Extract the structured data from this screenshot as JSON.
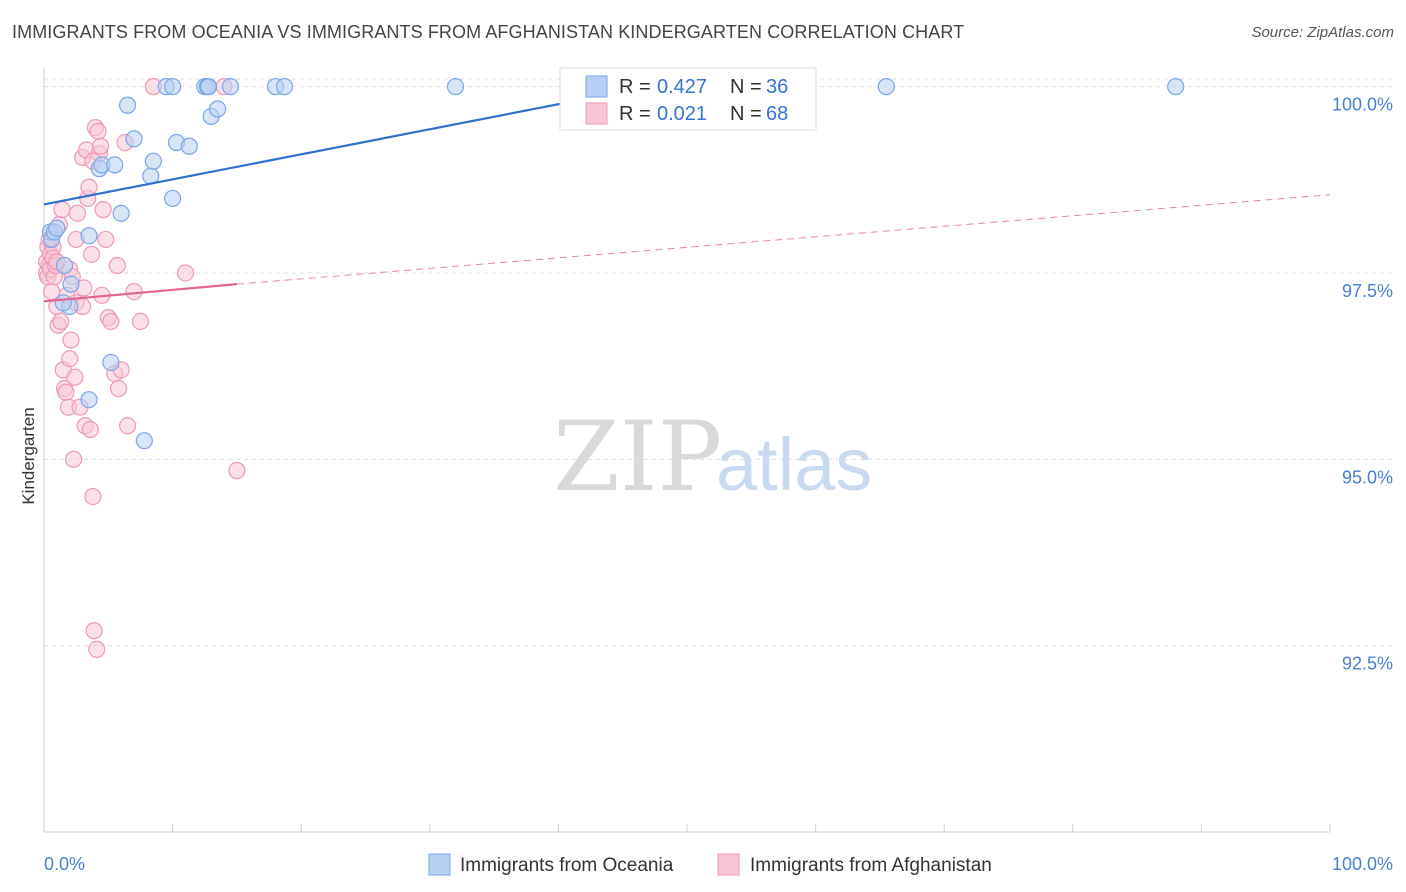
{
  "title": "IMMIGRANTS FROM OCEANIA VS IMMIGRANTS FROM AFGHANISTAN KINDERGARTEN CORRELATION CHART",
  "source": "Source: ZipAtlas.com",
  "watermark": {
    "zip": "ZIP",
    "atlas": "atlas"
  },
  "colors": {
    "oceania": "#7aa6e8",
    "oceania_fill": "#b8d0f3",
    "oceania_line": "#2f6fd0",
    "afghanistan": "#ee99b5",
    "afghanistan_fill": "#f7c6d6",
    "afghanistan_line": "#e0668f",
    "axis_text": "#4a7fd0",
    "grid": "#dddddd"
  },
  "legend_box": {
    "rows": [
      {
        "r_label": "R = ",
        "r_value": "0.427",
        "n_label": "N = ",
        "n_value": "36",
        "series": "oceania"
      },
      {
        "r_label": "R = ",
        "r_value": "0.021",
        "n_label": "N = ",
        "n_value": "68",
        "series": "afghanistan"
      }
    ]
  },
  "bottom_legend": [
    {
      "label": "Immigrants from Oceania",
      "series": "oceania"
    },
    {
      "label": "Immigrants from Afghanistan",
      "series": "afghanistan"
    }
  ],
  "chart_data": {
    "type": "scatter",
    "title": "IMMIGRANTS FROM OCEANIA VS IMMIGRANTS FROM AFGHANISTAN KINDERGARTEN CORRELATION CHART",
    "xlabel": "",
    "ylabel": "Kindergarten",
    "xlim": [
      0,
      100
    ],
    "ylim": [
      90.0,
      100.25
    ],
    "x_tick_labels": [
      "0.0%",
      "100.0%"
    ],
    "y_ticks": [
      {
        "value": 100.0,
        "label": "100.0%"
      },
      {
        "value": 97.5,
        "label": "97.5%"
      },
      {
        "value": 95.0,
        "label": "95.0%"
      },
      {
        "value": 92.5,
        "label": "92.5%"
      }
    ],
    "series": [
      {
        "name": "Immigrants from Oceania",
        "key": "oceania",
        "R": 0.427,
        "N": 36,
        "trend": {
          "x0": 0.0,
          "y0": 98.42,
          "x1": 50.0,
          "y1": 100.1,
          "dashed_to": null
        },
        "points": [
          [
            0.5,
            98.05
          ],
          [
            0.6,
            97.95
          ],
          [
            0.8,
            98.05
          ],
          [
            1.0,
            98.1
          ],
          [
            1.6,
            97.6
          ],
          [
            2.0,
            97.05
          ],
          [
            2.1,
            97.35
          ],
          [
            3.5,
            98.0
          ],
          [
            4.3,
            98.9
          ],
          [
            4.5,
            98.95
          ],
          [
            5.5,
            98.95
          ],
          [
            6.0,
            98.3
          ],
          [
            6.5,
            99.75
          ],
          [
            7.0,
            99.3
          ],
          [
            7.8,
            95.25
          ],
          [
            8.3,
            98.8
          ],
          [
            8.5,
            99.0
          ],
          [
            9.5,
            100.0
          ],
          [
            10.0,
            100.0
          ],
          [
            10.0,
            98.5
          ],
          [
            10.3,
            99.25
          ],
          [
            11.3,
            99.2
          ],
          [
            12.5,
            100.0
          ],
          [
            12.7,
            100.0
          ],
          [
            12.8,
            100.0
          ],
          [
            13.0,
            99.6
          ],
          [
            13.5,
            99.7
          ],
          [
            14.5,
            100.0
          ],
          [
            18.0,
            100.0
          ],
          [
            18.7,
            100.0
          ],
          [
            32.0,
            100.0
          ],
          [
            65.5,
            100.0
          ],
          [
            88.0,
            100.0
          ],
          [
            3.5,
            95.8
          ],
          [
            5.2,
            96.3
          ],
          [
            1.5,
            97.1
          ]
        ]
      },
      {
        "name": "Immigrants from Afghanistan",
        "key": "afghanistan",
        "R": 0.021,
        "N": 68,
        "trend": {
          "x0": 0.0,
          "y0": 97.12,
          "x1": 15.0,
          "y1": 97.35,
          "dashed_to": {
            "x": 100.0,
            "y": 98.55
          }
        },
        "points": [
          [
            0.2,
            97.5
          ],
          [
            0.2,
            97.65
          ],
          [
            0.3,
            97.85
          ],
          [
            0.3,
            97.45
          ],
          [
            0.4,
            97.6
          ],
          [
            0.5,
            97.75
          ],
          [
            0.5,
            97.55
          ],
          [
            0.6,
            97.25
          ],
          [
            0.7,
            97.85
          ],
          [
            0.7,
            97.7
          ],
          [
            0.8,
            97.45
          ],
          [
            0.9,
            97.6
          ],
          [
            1.0,
            97.05
          ],
          [
            1.1,
            96.8
          ],
          [
            1.2,
            98.15
          ],
          [
            1.3,
            96.85
          ],
          [
            1.4,
            98.35
          ],
          [
            1.5,
            96.2
          ],
          [
            1.6,
            95.95
          ],
          [
            1.7,
            95.9
          ],
          [
            1.8,
            97.2
          ],
          [
            1.9,
            95.7
          ],
          [
            2.0,
            96.35
          ],
          [
            2.0,
            97.55
          ],
          [
            2.1,
            96.6
          ],
          [
            2.2,
            97.45
          ],
          [
            2.3,
            95.0
          ],
          [
            2.4,
            96.1
          ],
          [
            2.5,
            97.95
          ],
          [
            2.5,
            97.1
          ],
          [
            2.6,
            98.3
          ],
          [
            2.8,
            95.7
          ],
          [
            3.0,
            99.05
          ],
          [
            3.0,
            97.05
          ],
          [
            3.1,
            97.3
          ],
          [
            3.2,
            95.45
          ],
          [
            3.3,
            99.15
          ],
          [
            3.4,
            98.5
          ],
          [
            3.5,
            98.65
          ],
          [
            3.6,
            95.4
          ],
          [
            3.7,
            97.75
          ],
          [
            3.8,
            94.5
          ],
          [
            3.9,
            92.7
          ],
          [
            4.0,
            99.45
          ],
          [
            4.1,
            92.45
          ],
          [
            4.2,
            99.4
          ],
          [
            4.3,
            99.1
          ],
          [
            4.4,
            99.2
          ],
          [
            4.6,
            98.35
          ],
          [
            4.8,
            97.95
          ],
          [
            5.0,
            96.9
          ],
          [
            5.2,
            96.85
          ],
          [
            5.5,
            96.15
          ],
          [
            5.7,
            97.6
          ],
          [
            5.8,
            95.95
          ],
          [
            6.0,
            96.2
          ],
          [
            6.3,
            99.25
          ],
          [
            6.5,
            95.45
          ],
          [
            7.0,
            97.25
          ],
          [
            7.5,
            96.85
          ],
          [
            8.5,
            100.0
          ],
          [
            11.0,
            97.5
          ],
          [
            14.0,
            100.0
          ],
          [
            15.0,
            94.85
          ],
          [
            0.4,
            97.95
          ],
          [
            1.0,
            97.65
          ],
          [
            4.5,
            97.2
          ],
          [
            3.8,
            99.0
          ]
        ]
      }
    ]
  }
}
